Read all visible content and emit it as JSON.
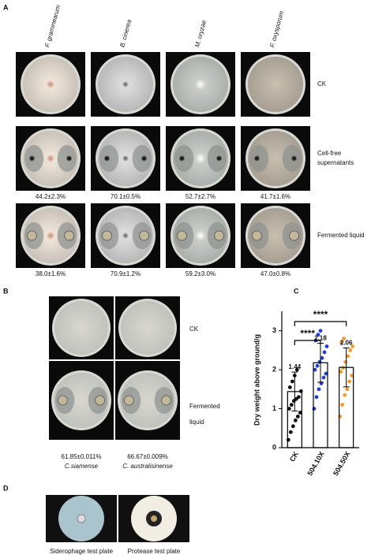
{
  "panel_a": {
    "label": "A",
    "strains": [
      "F. graminearum",
      "B. cinerea",
      "M. oryzae",
      "F. oxysporum"
    ],
    "rows": [
      {
        "label": "CK"
      },
      {
        "label": "Cell-free supernatants",
        "inhibition": [
          "44.2±2.3%",
          "70.1±0.5%",
          "52.7±2.7%",
          "41.7±1.6%"
        ]
      },
      {
        "label": "Fermented liquid",
        "inhibition": [
          "38.0±1.6%",
          "70.9±1.2%",
          "59.2±3.0%",
          "47.0±0.8%"
        ]
      }
    ]
  },
  "panel_b": {
    "label": "B",
    "rows": [
      "CK",
      "Fermented liquid"
    ],
    "inhibition": [
      "61.85±0.011%",
      "66.67±0.009%"
    ],
    "species": [
      "C.siamense",
      "C. australisinense"
    ]
  },
  "chart_data": {
    "type": "bar",
    "label": "C",
    "y_label": "Dry weight above ground/g",
    "categories": [
      "CK",
      "504.10X",
      "504.50X"
    ],
    "values": [
      1.44,
      2.18,
      2.06
    ],
    "errors": [
      0.5,
      0.5,
      0.5
    ],
    "colors": [
      "#111111",
      "#1f3fd0",
      "#f39a2b"
    ],
    "points": [
      [
        0.2,
        0.4,
        0.55,
        0.7,
        0.8,
        0.9,
        1.0,
        1.1,
        1.2,
        1.25,
        1.3,
        1.45,
        1.55,
        1.7,
        1.85,
        2.0
      ],
      [
        1.0,
        1.3,
        1.5,
        1.65,
        1.8,
        1.9,
        2.0,
        2.1,
        2.2,
        2.3,
        2.45,
        2.6,
        2.75,
        2.9,
        3.0
      ],
      [
        0.8,
        1.1,
        1.35,
        1.5,
        1.7,
        1.85,
        1.95,
        2.05,
        2.2,
        2.35,
        2.5,
        2.6,
        2.7,
        2.8
      ]
    ],
    "significance": [
      "****",
      "****"
    ],
    "ylim": [
      0,
      3.5
    ],
    "yticks": [
      0,
      1,
      2,
      3
    ]
  },
  "panel_d": {
    "label": "D",
    "captions": [
      "Siderophage test plate",
      "Protease test plate"
    ]
  }
}
